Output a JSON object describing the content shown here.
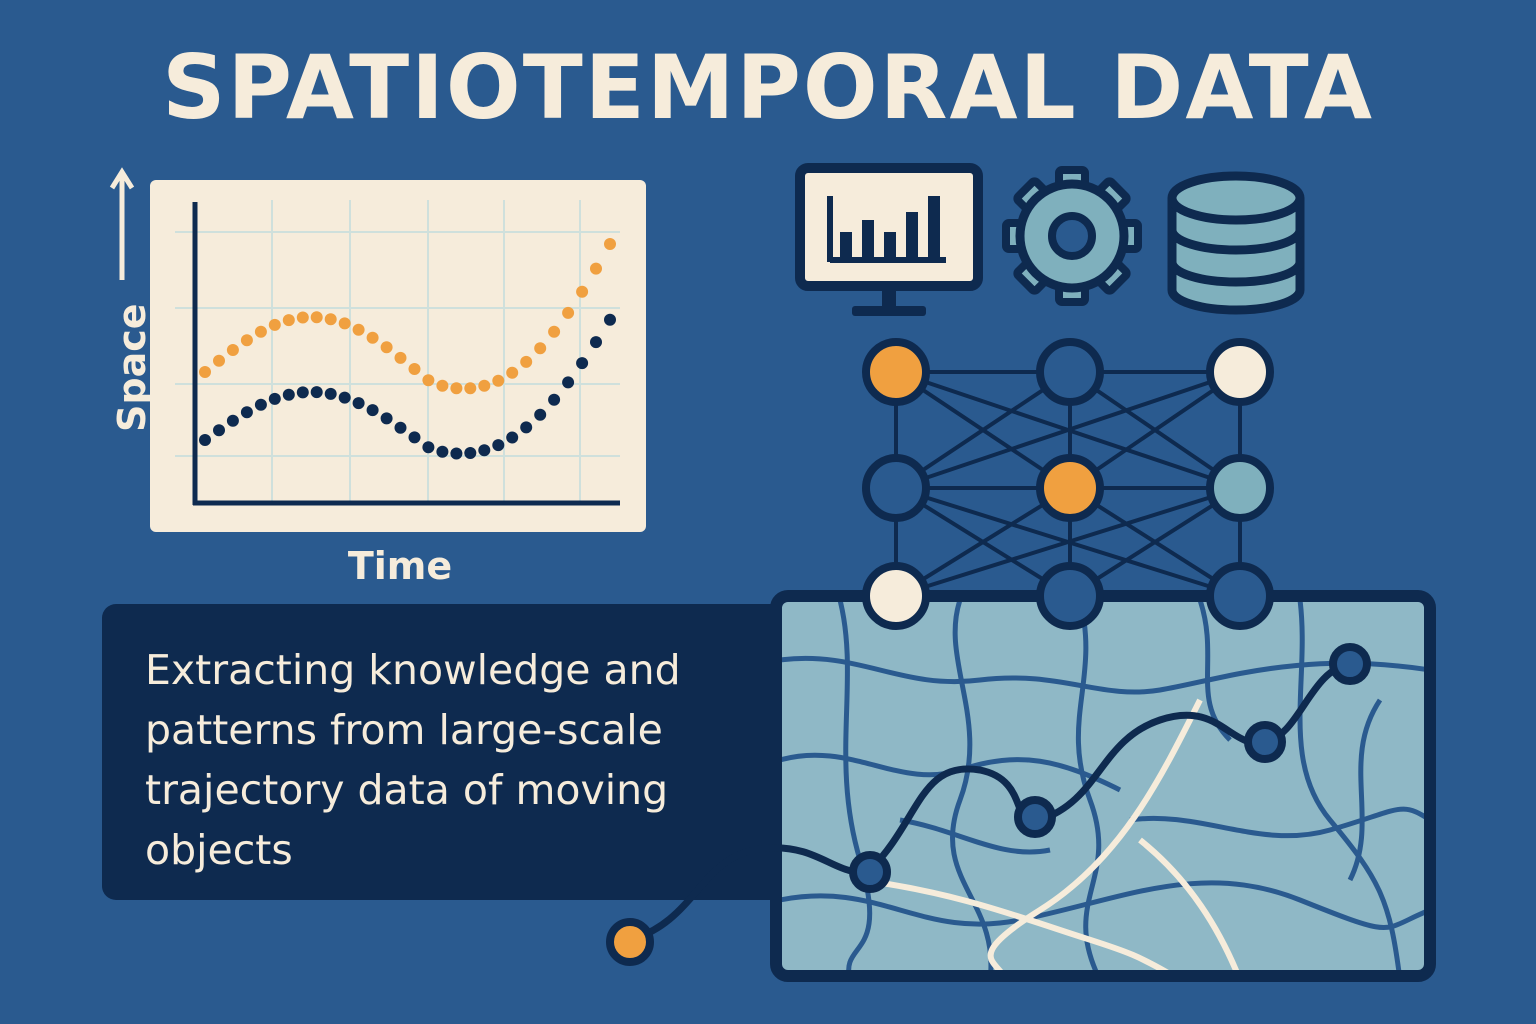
{
  "title": "SPATIOTEMPORAL DATA",
  "chart_data": {
    "type": "scatter",
    "xlabel": "Time",
    "ylabel": "Space",
    "grid": true,
    "series": [
      {
        "values_desc": "upper dotted wave",
        "color": "#f0a040"
      },
      {
        "values_desc": "lower dotted wave",
        "color": "#0e2a4f"
      }
    ]
  },
  "description_text": "Extracting knowledge and patterns from large-scale trajectory data of moving objects",
  "icons": {
    "monitor": "bar-chart-monitor-icon",
    "gear": "gear-icon",
    "database": "database-icon"
  },
  "colors": {
    "background": "#2a5a8f",
    "navy": "#0e2a4f",
    "cream": "#f6ecdb",
    "orange": "#f0a040",
    "teal": "#7fb0bd",
    "map": "#8fb8c6"
  }
}
